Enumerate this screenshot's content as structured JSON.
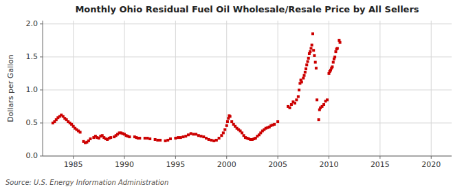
{
  "chart_data": {
    "type": "scatter",
    "title": "Monthly Ohio Residual Fuel Oil Wholesale/Resale Price by All Sellers",
    "y_label": "Dollars per Gallon",
    "annotation": "Source: U.S. Energy Information Administration",
    "color": "#cc0000",
    "marker": "square",
    "grid": true,
    "xlim": [
      1982,
      2022
    ],
    "ylim": [
      0.0,
      2.05
    ],
    "xticks": [
      1985,
      1990,
      1995,
      2000,
      2005,
      2010,
      2015,
      2020
    ],
    "yticks": [
      {
        "value": 0.0,
        "label": "0.0"
      },
      0.5,
      {
        "value": 1.0,
        "label": "1.0"
      },
      1.5,
      {
        "value": 2.0,
        "label": "2.0"
      }
    ],
    "x": [
      1983.0,
      1983.17,
      1983.33,
      1983.5,
      1983.67,
      1983.83,
      1984.0,
      1984.17,
      1984.33,
      1984.5,
      1984.67,
      1984.83,
      1985.0,
      1985.17,
      1985.33,
      1985.5,
      1985.67,
      1986.0,
      1986.17,
      1986.33,
      1986.5,
      1986.67,
      1987.0,
      1987.17,
      1987.33,
      1987.5,
      1987.67,
      1987.83,
      1988.0,
      1988.17,
      1988.33,
      1988.5,
      1988.67,
      1989.0,
      1989.17,
      1989.33,
      1989.5,
      1989.67,
      1989.83,
      1990.0,
      1990.17,
      1990.33,
      1990.5,
      1991.0,
      1991.17,
      1991.33,
      1991.5,
      1992.0,
      1992.25,
      1992.5,
      1993.0,
      1993.25,
      1993.5,
      1994.0,
      1994.25,
      1994.5,
      1995.0,
      1995.25,
      1995.5,
      1995.75,
      1996.0,
      1996.25,
      1996.5,
      1996.75,
      1997.0,
      1997.25,
      1997.5,
      1997.75,
      1998.0,
      1998.25,
      1998.5,
      1998.75,
      1999.0,
      1999.25,
      1999.5,
      1999.67,
      1999.83,
      2000.0,
      2000.08,
      2000.17,
      2000.25,
      2000.33,
      2000.5,
      2000.67,
      2000.83,
      2001.0,
      2001.17,
      2001.33,
      2001.5,
      2001.67,
      2001.83,
      2002.0,
      2002.17,
      2002.33,
      2002.5,
      2002.67,
      2002.83,
      2003.0,
      2003.17,
      2003.33,
      2003.5,
      2003.67,
      2003.83,
      2004.0,
      2004.17,
      2004.33,
      2004.5,
      2004.67,
      2005.0,
      2006.0,
      2006.17,
      2006.33,
      2006.5,
      2006.67,
      2006.83,
      2007.0,
      2007.08,
      2007.17,
      2007.25,
      2007.33,
      2007.5,
      2007.58,
      2007.67,
      2007.75,
      2007.83,
      2007.92,
      2008.0,
      2008.08,
      2008.17,
      2008.25,
      2008.33,
      2008.42,
      2008.5,
      2008.58,
      2008.67,
      2008.75,
      2008.83,
      2009.0,
      2009.08,
      2009.17,
      2009.33,
      2009.5,
      2009.67,
      2009.83,
      2010.0,
      2010.08,
      2010.17,
      2010.25,
      2010.33,
      2010.42,
      2010.5,
      2010.58,
      2010.67,
      2010.75,
      2010.83,
      2011.0,
      2011.08
    ],
    "values": [
      0.5,
      0.52,
      0.55,
      0.58,
      0.6,
      0.62,
      0.6,
      0.57,
      0.55,
      0.52,
      0.5,
      0.48,
      0.45,
      0.42,
      0.4,
      0.38,
      0.36,
      0.22,
      0.2,
      0.21,
      0.23,
      0.26,
      0.28,
      0.3,
      0.28,
      0.27,
      0.3,
      0.31,
      0.28,
      0.26,
      0.25,
      0.27,
      0.28,
      0.29,
      0.31,
      0.33,
      0.35,
      0.35,
      0.34,
      0.33,
      0.31,
      0.3,
      0.29,
      0.29,
      0.28,
      0.27,
      0.27,
      0.27,
      0.27,
      0.26,
      0.25,
      0.24,
      0.24,
      0.23,
      0.24,
      0.26,
      0.27,
      0.28,
      0.28,
      0.29,
      0.3,
      0.32,
      0.34,
      0.33,
      0.33,
      0.31,
      0.3,
      0.29,
      0.27,
      0.25,
      0.24,
      0.23,
      0.24,
      0.27,
      0.31,
      0.35,
      0.4,
      0.46,
      0.52,
      0.57,
      0.61,
      0.6,
      0.52,
      0.48,
      0.45,
      0.42,
      0.4,
      0.38,
      0.35,
      0.31,
      0.28,
      0.27,
      0.26,
      0.25,
      0.25,
      0.26,
      0.27,
      0.3,
      0.32,
      0.35,
      0.38,
      0.4,
      0.42,
      0.43,
      0.44,
      0.46,
      0.47,
      0.48,
      0.52,
      0.75,
      0.73,
      0.78,
      0.82,
      0.8,
      0.85,
      0.9,
      1.0,
      1.1,
      1.15,
      1.12,
      1.18,
      1.22,
      1.27,
      1.32,
      1.38,
      1.43,
      1.48,
      1.55,
      1.58,
      1.63,
      1.68,
      1.85,
      1.6,
      1.52,
      1.42,
      1.33,
      0.85,
      0.55,
      0.7,
      0.73,
      0.75,
      0.78,
      0.83,
      0.85,
      1.25,
      1.28,
      1.3,
      1.33,
      1.35,
      1.42,
      1.47,
      1.5,
      1.58,
      1.62,
      1.63,
      1.75,
      1.72
    ]
  }
}
